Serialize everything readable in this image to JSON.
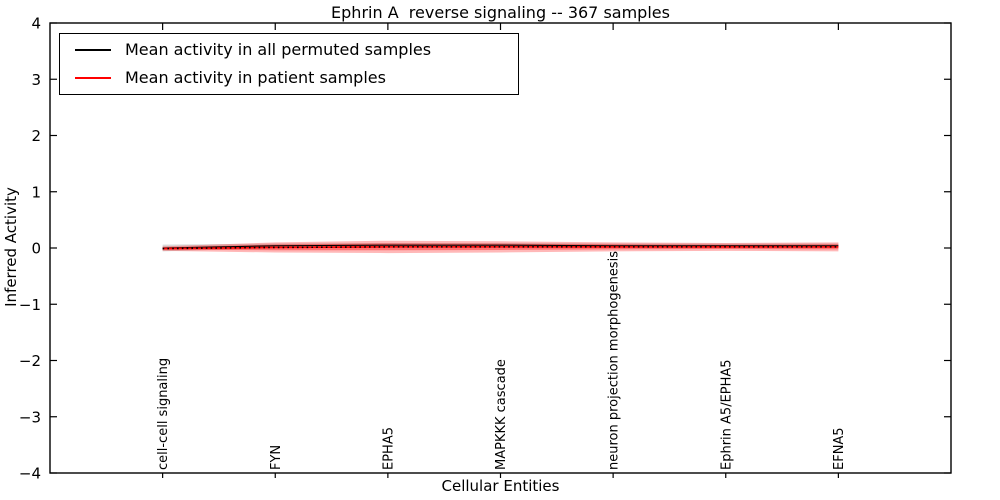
{
  "figure": {
    "title": "Ephrin A  reverse signaling -- 367 samples",
    "xlabel": "Cellular Entities",
    "ylabel": "Inferred Activity"
  },
  "legend": {
    "items": [
      {
        "label": "Mean activity in all permuted samples",
        "color": "#000000"
      },
      {
        "label": "Mean activity in patient samples",
        "color": "#ff0000"
      }
    ]
  },
  "chart_data": {
    "type": "line",
    "title": "Ephrin A  reverse signaling -- 367 samples",
    "xlabel": "Cellular Entities",
    "ylabel": "Inferred Activity",
    "categories": [
      "cell-cell signaling",
      "FYN",
      "EPHA5",
      "MAPKKK cascade",
      "neuron projection morphogenesis",
      "Ephrin A5/EPHA5",
      "EFNA5"
    ],
    "xlim": [
      -1,
      7
    ],
    "ylim": [
      -4,
      4
    ],
    "yticks": [
      -4,
      -3,
      -2,
      -1,
      0,
      1,
      2,
      3,
      4
    ],
    "grid": false,
    "legend_position": "upper left",
    "series": [
      {
        "name": "Mean activity in all permuted samples",
        "color": "#000000",
        "values": [
          0.0,
          0.04,
          0.05,
          0.05,
          0.04,
          0.04,
          0.04
        ],
        "band": [
          0.06,
          0.04,
          0.04,
          0.04,
          0.04,
          0.04,
          0.04
        ],
        "band_color": "#999999"
      },
      {
        "name": "Mean activity in patient samples",
        "color": "#ff0000",
        "values": [
          -0.01,
          0.01,
          0.02,
          0.02,
          0.02,
          0.02,
          0.02
        ],
        "band": [
          0.04,
          0.09,
          0.11,
          0.1,
          0.08,
          0.07,
          0.08
        ],
        "band_color": "#ff0000"
      }
    ]
  }
}
